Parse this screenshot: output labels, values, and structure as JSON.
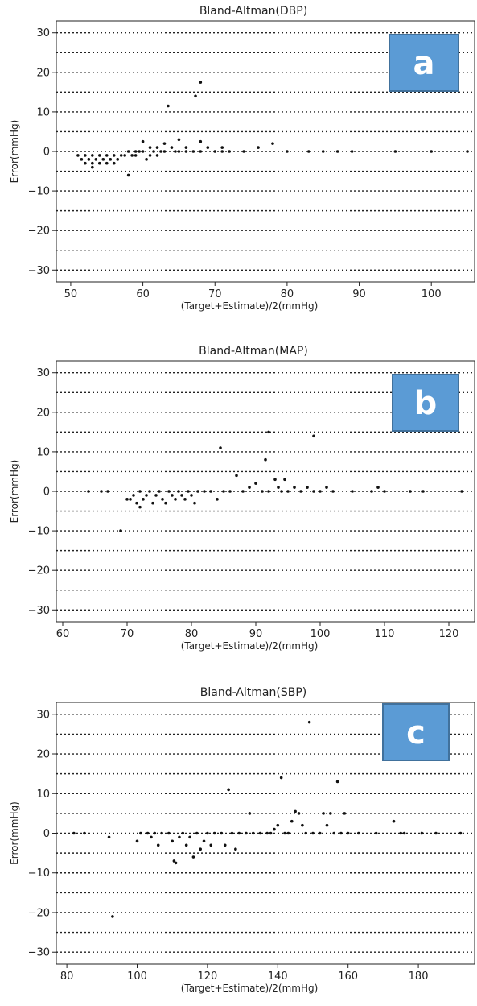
{
  "chart_data": [
    {
      "type": "scatter",
      "title": "Bland-Altman(DBP)",
      "xlabel": "(Target+Estimate)/2(mmHg)",
      "ylabel": "Error(mmHg)",
      "panel_label": "a",
      "xlim": [
        48,
        106
      ],
      "ylim": [
        -33,
        33
      ],
      "xticks": [
        50,
        60,
        70,
        80,
        90,
        100
      ],
      "yticks": [
        -30,
        -20,
        -10,
        0,
        10,
        20,
        30
      ],
      "gridlines_y": [
        -30,
        -25,
        -20,
        -15,
        -10,
        -5,
        0,
        5,
        10,
        15,
        20,
        25,
        30
      ],
      "grid": "horizontal dotted",
      "colors": {
        "points": "#111111",
        "badge": "#5b9bd5",
        "badge_border": "#41719c"
      },
      "points": [
        [
          51,
          -1
        ],
        [
          51.5,
          -2
        ],
        [
          52,
          -3
        ],
        [
          52,
          -1
        ],
        [
          52.5,
          -2
        ],
        [
          53,
          -3
        ],
        [
          53,
          -1
        ],
        [
          53,
          -4
        ],
        [
          53.5,
          -2
        ],
        [
          54,
          -1
        ],
        [
          54,
          -3
        ],
        [
          54.5,
          -2
        ],
        [
          55,
          -1
        ],
        [
          55,
          -3
        ],
        [
          55.5,
          -2
        ],
        [
          56,
          -1
        ],
        [
          56,
          -3
        ],
        [
          56.5,
          -2
        ],
        [
          57,
          -1
        ],
        [
          57.5,
          -1
        ],
        [
          58,
          -6
        ],
        [
          58,
          0
        ],
        [
          58.5,
          -1
        ],
        [
          59,
          0
        ],
        [
          59,
          -1
        ],
        [
          59.5,
          0
        ],
        [
          60,
          2.5
        ],
        [
          60,
          0
        ],
        [
          60.5,
          -2
        ],
        [
          61,
          1
        ],
        [
          61,
          -1
        ],
        [
          61.5,
          0
        ],
        [
          62,
          1
        ],
        [
          62,
          -1
        ],
        [
          62.5,
          0
        ],
        [
          63,
          2
        ],
        [
          63,
          0
        ],
        [
          63.5,
          11.5
        ],
        [
          64,
          1
        ],
        [
          64.5,
          0
        ],
        [
          65,
          3
        ],
        [
          65,
          0
        ],
        [
          66,
          1
        ],
        [
          66,
          0
        ],
        [
          67,
          0
        ],
        [
          67.3,
          14
        ],
        [
          68,
          17.5
        ],
        [
          68,
          2.5
        ],
        [
          68,
          0
        ],
        [
          69,
          1
        ],
        [
          70,
          0
        ],
        [
          71,
          1
        ],
        [
          71,
          0
        ],
        [
          72,
          0
        ],
        [
          74,
          0
        ],
        [
          76,
          1
        ],
        [
          78,
          2
        ],
        [
          80,
          0
        ],
        [
          83,
          0
        ],
        [
          85,
          0
        ],
        [
          87,
          0
        ],
        [
          89,
          0
        ],
        [
          95,
          0
        ],
        [
          100,
          0
        ],
        [
          105,
          0
        ]
      ]
    },
    {
      "type": "scatter",
      "title": "Bland-Altman(MAP)",
      "xlabel": "(Target+Estimate)/2(mmHg)",
      "ylabel": "Error(mmHg)",
      "panel_label": "b",
      "xlim": [
        59,
        124
      ],
      "ylim": [
        -33,
        33
      ],
      "xticks": [
        60,
        70,
        80,
        90,
        100,
        110,
        120
      ],
      "yticks": [
        -30,
        -20,
        -10,
        0,
        10,
        20,
        30
      ],
      "gridlines_y": [
        -30,
        -25,
        -20,
        -15,
        -10,
        -5,
        0,
        5,
        10,
        15,
        20,
        25,
        30
      ],
      "grid": "horizontal dotted",
      "colors": {
        "points": "#111111",
        "badge": "#5b9bd5",
        "badge_border": "#41719c"
      },
      "points": [
        [
          64,
          0
        ],
        [
          66,
          0
        ],
        [
          67,
          0
        ],
        [
          69,
          -10
        ],
        [
          70,
          -2
        ],
        [
          70.5,
          -2
        ],
        [
          71,
          -1
        ],
        [
          71.5,
          -3
        ],
        [
          72,
          -4
        ],
        [
          72,
          0
        ],
        [
          72.5,
          -2
        ],
        [
          73,
          -1
        ],
        [
          73.5,
          0
        ],
        [
          74,
          -3
        ],
        [
          74.5,
          -1
        ],
        [
          75,
          0
        ],
        [
          75.5,
          -2
        ],
        [
          76,
          -3
        ],
        [
          76.5,
          0
        ],
        [
          77,
          -1
        ],
        [
          77.5,
          -2
        ],
        [
          78,
          0
        ],
        [
          78.5,
          -1
        ],
        [
          79,
          -2
        ],
        [
          79.5,
          0
        ],
        [
          80,
          -1
        ],
        [
          80.5,
          -3
        ],
        [
          81,
          0
        ],
        [
          82,
          0
        ],
        [
          83,
          0
        ],
        [
          84,
          -2
        ],
        [
          84.5,
          11
        ],
        [
          85,
          0
        ],
        [
          86,
          0
        ],
        [
          87,
          4
        ],
        [
          88,
          0
        ],
        [
          89,
          1
        ],
        [
          90,
          2
        ],
        [
          91,
          0
        ],
        [
          91.5,
          8
        ],
        [
          92,
          15
        ],
        [
          92,
          0
        ],
        [
          93,
          3
        ],
        [
          93.5,
          1
        ],
        [
          94,
          0
        ],
        [
          94.5,
          3
        ],
        [
          95,
          0
        ],
        [
          96,
          1
        ],
        [
          97,
          0
        ],
        [
          98,
          1
        ],
        [
          99,
          14
        ],
        [
          99,
          0
        ],
        [
          100,
          0
        ],
        [
          101,
          1
        ],
        [
          102,
          0
        ],
        [
          105,
          0
        ],
        [
          108,
          0
        ],
        [
          109,
          1
        ],
        [
          110,
          0
        ],
        [
          114,
          0
        ],
        [
          116,
          0
        ],
        [
          122,
          0
        ]
      ]
    },
    {
      "type": "scatter",
      "title": "Bland-Altman(SBP)",
      "xlabel": "(Target+Estimate)/2(mmHg)",
      "ylabel": "Error(mmHg)",
      "panel_label": "c",
      "xlim": [
        77,
        196
      ],
      "ylim": [
        -33,
        33
      ],
      "xticks": [
        80,
        100,
        120,
        140,
        160,
        180
      ],
      "yticks": [
        -30,
        -20,
        -10,
        0,
        10,
        20,
        30
      ],
      "gridlines_y": [
        -30,
        -25,
        -20,
        -15,
        -10,
        -5,
        0,
        5,
        10,
        15,
        20,
        25,
        30
      ],
      "grid": "horizontal dotted",
      "colors": {
        "points": "#111111",
        "badge": "#5b9bd5",
        "badge_border": "#41719c"
      },
      "points": [
        [
          82,
          0
        ],
        [
          85,
          0
        ],
        [
          92,
          -1
        ],
        [
          93,
          -21
        ],
        [
          100,
          -2
        ],
        [
          101,
          0
        ],
        [
          103,
          0
        ],
        [
          104,
          -1
        ],
        [
          105,
          0
        ],
        [
          106,
          -3
        ],
        [
          107,
          0
        ],
        [
          109,
          0
        ],
        [
          110,
          -2
        ],
        [
          110.5,
          -7
        ],
        [
          111,
          -7.5
        ],
        [
          112,
          -1
        ],
        [
          113,
          0
        ],
        [
          114,
          -3
        ],
        [
          115,
          -1
        ],
        [
          116,
          -6
        ],
        [
          117,
          0
        ],
        [
          118,
          -4
        ],
        [
          119,
          -2
        ],
        [
          120,
          0
        ],
        [
          121,
          -3
        ],
        [
          122,
          0
        ],
        [
          124,
          0
        ],
        [
          125,
          -3
        ],
        [
          126,
          11
        ],
        [
          127,
          0
        ],
        [
          128,
          -4
        ],
        [
          129,
          0
        ],
        [
          131,
          0
        ],
        [
          132,
          5
        ],
        [
          133,
          0
        ],
        [
          135,
          0
        ],
        [
          137,
          0
        ],
        [
          138,
          0
        ],
        [
          139,
          1
        ],
        [
          140,
          2
        ],
        [
          141,
          14
        ],
        [
          142,
          0
        ],
        [
          143,
          0
        ],
        [
          144,
          3
        ],
        [
          145,
          5.5
        ],
        [
          146,
          5
        ],
        [
          147,
          2
        ],
        [
          148,
          0
        ],
        [
          149,
          28
        ],
        [
          150,
          0
        ],
        [
          152,
          0
        ],
        [
          153,
          5
        ],
        [
          154,
          2
        ],
        [
          155,
          5
        ],
        [
          156,
          0
        ],
        [
          157,
          13
        ],
        [
          158,
          0
        ],
        [
          159,
          5
        ],
        [
          160,
          0
        ],
        [
          163,
          0
        ],
        [
          168,
          0
        ],
        [
          173,
          3
        ],
        [
          175,
          0
        ],
        [
          176,
          0
        ],
        [
          181,
          0
        ],
        [
          185,
          0
        ],
        [
          192,
          0
        ]
      ]
    }
  ]
}
